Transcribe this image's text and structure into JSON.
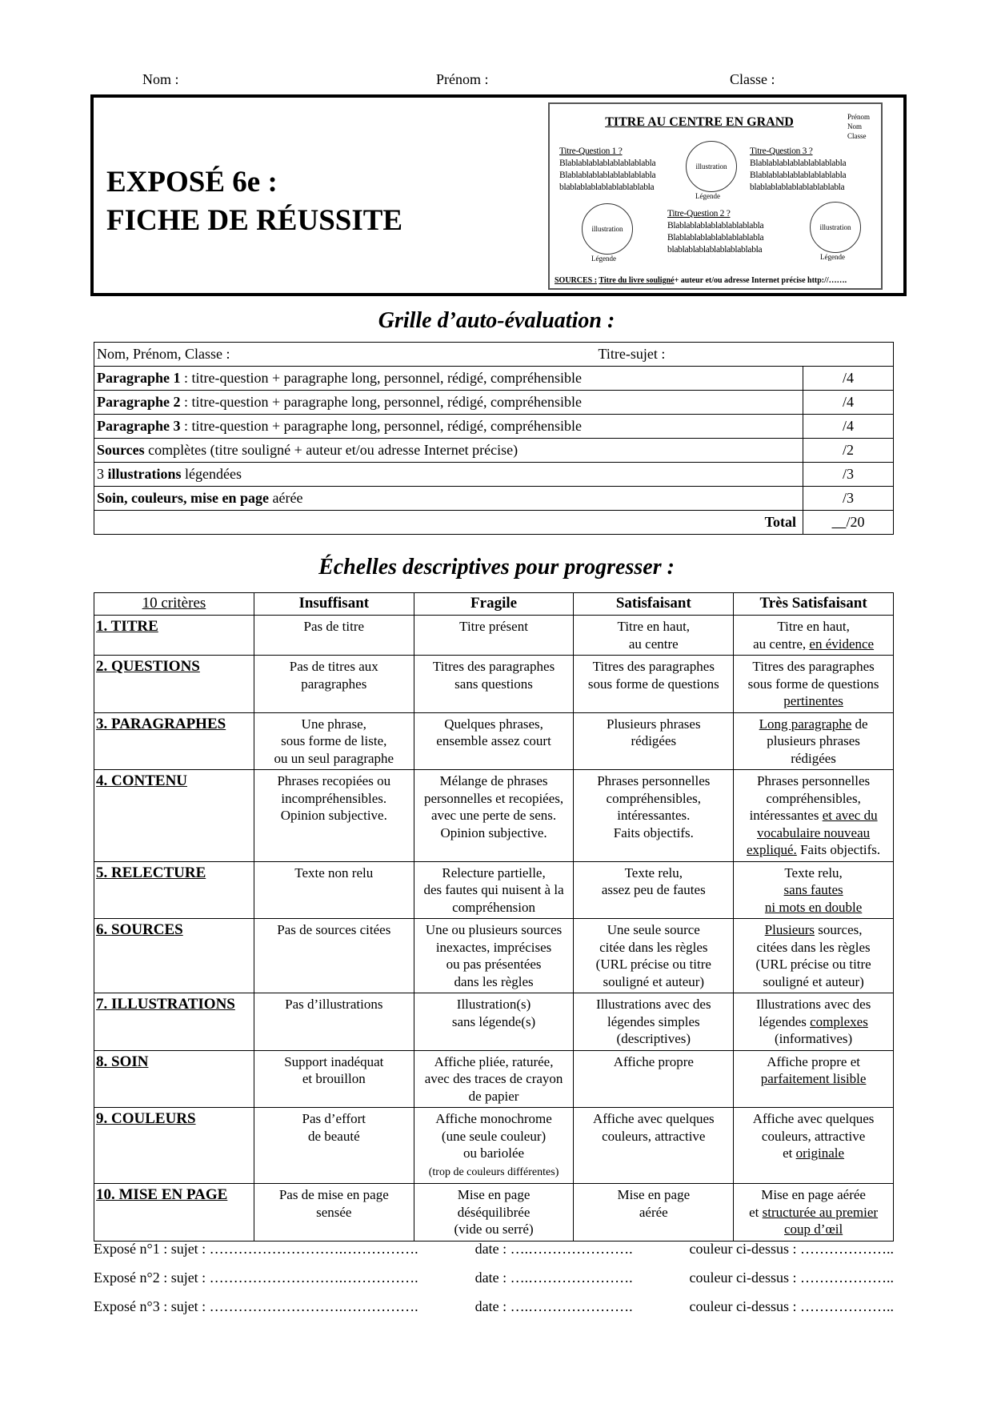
{
  "header": {
    "nom": "Nom :",
    "prenom": "Prénom :",
    "classe": "Classe :"
  },
  "title": {
    "line1": "EXPOSÉ 6e :",
    "line2": "FICHE DE RÉUSSITE"
  },
  "poster": {
    "title": "TITRE AU CENTRE EN GRAND",
    "info": [
      "Prénom",
      "Nom",
      "Classe"
    ],
    "q1": "Titre-Question 1 ?",
    "q2": "Titre-Question 2 ?",
    "q3": "Titre-Question 3 ?",
    "bla1": "Blablablablablablablablabla",
    "bla2": "Blablablablablablablablabla",
    "bla3": "blablablablablablablablabla",
    "illustration": "illustration",
    "legende": "Légende",
    "sources_label": "SOURCES :",
    "sources_title": "Titre du livre souligné",
    "sources_rest": "+ auteur et/ou adresse Internet précise http://……."
  },
  "grid": {
    "heading": "Grille d’auto-évaluation :",
    "name_label": "Nom, Prénom, Classe :",
    "subject_label": "Titre-sujet :",
    "rows": [
      {
        "bold": "Paragraphe 1",
        "text": " : titre-question + paragraphe long, personnel, rédigé, compréhensible",
        "score": "/4"
      },
      {
        "bold": "Paragraphe 2",
        "text": " : titre-question + paragraphe long, personnel, rédigé, compréhensible",
        "score": "/4"
      },
      {
        "bold": "Paragraphe 3",
        "text": " : titre-question + paragraphe long, personnel, rédigé, compréhensible",
        "score": "/4"
      },
      {
        "pre": "",
        "bold": "Sources",
        "text": " complètes (titre souligné + auteur et/ou adresse Internet précise)",
        "score": "/2"
      },
      {
        "pre": "3 ",
        "bold": "illustrations",
        "text": " légendées",
        "score": "/3"
      },
      {
        "pre": "",
        "bold": "Soin, couleurs, mise en page",
        "text": " aérée",
        "score": "/3"
      }
    ],
    "total_label": "Total",
    "total_score": "/20"
  },
  "scale": {
    "heading": "Échelles descriptives pour progresser :",
    "columns": [
      "10 critères",
      "Insuffisant",
      "Fragile",
      "Satisfaisant",
      "Très Satisfaisant"
    ],
    "rows": [
      {
        "c": "1. TITRE",
        "cells": [
          [
            [
              "Pas de titre"
            ]
          ],
          [
            [
              "Titre présent"
            ]
          ],
          [
            [
              "Titre en haut,"
            ],
            [
              "au centre"
            ]
          ],
          [
            [
              "Titre en haut,"
            ],
            [
              "au centre, ",
              {
                "u": "en évidence"
              }
            ]
          ]
        ]
      },
      {
        "c": "2. QUESTIONS",
        "cells": [
          [
            [
              "Pas de titres aux"
            ],
            [
              "paragraphes"
            ]
          ],
          [
            [
              "Titres des paragraphes"
            ],
            [
              "sans questions"
            ]
          ],
          [
            [
              "Titres des paragraphes"
            ],
            [
              "sous forme de questions"
            ]
          ],
          [
            [
              "Titres des paragraphes"
            ],
            [
              "sous forme de questions"
            ],
            [
              {
                "u": "pertinentes"
              }
            ]
          ]
        ]
      },
      {
        "c": "3. PARAGRAPHES",
        "cells": [
          [
            [
              "Une phrase,"
            ],
            [
              "sous forme de liste,"
            ],
            [
              "ou un seul paragraphe"
            ]
          ],
          [
            [
              "Quelques phrases,"
            ],
            [
              "ensemble assez court"
            ]
          ],
          [
            [
              "Plusieurs phrases"
            ],
            [
              "rédigées"
            ]
          ],
          [
            [
              {
                "u": "Long paragraphe"
              },
              " de"
            ],
            [
              "plusieurs phrases"
            ],
            [
              "rédigées"
            ]
          ]
        ]
      },
      {
        "c": "4. CONTENU",
        "cells": [
          [
            [
              "Phrases recopiées ou"
            ],
            [
              "incompréhensibles."
            ],
            [
              "Opinion subjective."
            ]
          ],
          [
            [
              "Mélange de phrases"
            ],
            [
              "personnelles et recopiées,"
            ],
            [
              "avec une perte de sens."
            ],
            [
              "Opinion subjective."
            ]
          ],
          [
            [
              "Phrases personnelles"
            ],
            [
              "compréhensibles,"
            ],
            [
              "intéressantes."
            ],
            [
              "Faits objectifs."
            ]
          ],
          [
            [
              "Phrases personnelles"
            ],
            [
              "compréhensibles,"
            ],
            [
              "intéressantes ",
              {
                "u": "et avec du"
              }
            ],
            [
              {
                "u": "vocabulaire nouveau"
              }
            ],
            [
              {
                "u": "expliqué."
              },
              " Faits objectifs."
            ]
          ]
        ]
      },
      {
        "c": "5. RELECTURE",
        "cells": [
          [
            [
              "Texte non relu"
            ]
          ],
          [
            [
              "Relecture partielle,"
            ],
            [
              "des fautes qui nuisent à la"
            ],
            [
              "compréhension"
            ]
          ],
          [
            [
              "Texte relu,"
            ],
            [
              "assez peu de fautes"
            ]
          ],
          [
            [
              "Texte relu,"
            ],
            [
              {
                "u": "sans fautes "
              }
            ],
            [
              {
                "u": "ni mots en double"
              }
            ]
          ]
        ]
      },
      {
        "c": "6. SOURCES",
        "cells": [
          [
            [
              "Pas de sources citées"
            ]
          ],
          [
            [
              "Une ou plusieurs sources"
            ],
            [
              "inexactes, imprécises"
            ],
            [
              "ou pas présentées"
            ],
            [
              "dans les règles"
            ]
          ],
          [
            [
              "Une seule source"
            ],
            [
              "citée dans les règles"
            ],
            [
              "(URL précise ou titre"
            ],
            [
              "souligné et auteur)"
            ]
          ],
          [
            [
              {
                "u": "Plusieurs"
              },
              " sources,"
            ],
            [
              "citées dans les règles"
            ],
            [
              "(URL précise ou titre"
            ],
            [
              "souligné et auteur)"
            ]
          ]
        ]
      },
      {
        "c": "7. ILLUSTRATIONS",
        "cells": [
          [
            [
              "Pas d’illustrations"
            ]
          ],
          [
            [
              "Illustration(s)"
            ],
            [
              "sans légende(s)"
            ]
          ],
          [
            [
              "Illustrations avec des"
            ],
            [
              "légendes simples"
            ],
            [
              "(descriptives)"
            ]
          ],
          [
            [
              "Illustrations avec des"
            ],
            [
              "légendes ",
              {
                "u": "complexes"
              }
            ],
            [
              "(informatives)"
            ]
          ]
        ]
      },
      {
        "c": "8. SOIN",
        "cells": [
          [
            [
              "Support inadéquat"
            ],
            [
              "et brouillon"
            ]
          ],
          [
            [
              "Affiche pliée, raturée,"
            ],
            [
              "avec des traces de crayon"
            ],
            [
              "de papier"
            ]
          ],
          [
            [
              "Affiche propre"
            ]
          ],
          [
            [
              "Affiche propre et"
            ],
            [
              {
                "u": "parfaitement lisible"
              }
            ]
          ]
        ]
      },
      {
        "c": "9. COULEURS",
        "cells": [
          [
            [
              "Pas d’effort"
            ],
            [
              "de beauté"
            ]
          ],
          [
            [
              "Affiche monochrome"
            ],
            [
              "(une seule couleur)"
            ],
            [
              "ou  bariolée"
            ],
            [
              {
                "s": "(trop de couleurs différentes)"
              }
            ]
          ],
          [
            [
              "Affiche avec quelques"
            ],
            [
              "couleurs, attractive"
            ]
          ],
          [
            [
              "Affiche avec quelques"
            ],
            [
              "couleurs, attractive"
            ],
            [
              "et ",
              {
                "u": "originale"
              }
            ]
          ]
        ]
      },
      {
        "c": "10. MISE EN PAGE",
        "cells": [
          [
            [
              "Pas de mise en page"
            ],
            [
              "sensée"
            ]
          ],
          [
            [
              "Mise en page"
            ],
            [
              "déséquilibrée"
            ],
            [
              "(vide ou serré)"
            ]
          ],
          [
            [
              "Mise en page"
            ],
            [
              "aérée"
            ]
          ],
          [
            [
              "Mise en page aérée"
            ],
            [
              "et ",
              {
                "u": "structurée au premier"
              }
            ],
            [
              {
                "u": "coup d’œil"
              }
            ]
          ]
        ]
      }
    ]
  },
  "footer": [
    {
      "a": "Exposé n°1 : sujet : ……………………….…………….",
      "b": "date : ….………………….",
      "c": "couleur ci-dessus : ……………….."
    },
    {
      "a": "Exposé n°2 : sujet : ……………………….…………….",
      "b": "date : ….………………….",
      "c": "couleur ci-dessus : ……………….."
    },
    {
      "a": "Exposé n°3 : sujet : ……………………….…………….",
      "b": "date : ….………………….",
      "c": "couleur ci-dessus : ……………….."
    }
  ]
}
